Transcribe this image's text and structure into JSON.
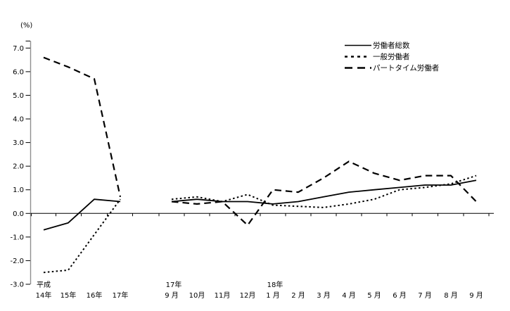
{
  "chart_data": {
    "type": "line",
    "title": "",
    "unit_label": "(%)",
    "ylabel": "",
    "xlabel": "",
    "ylim": [
      -3.0,
      7.0
    ],
    "ytick_interval": 1.0,
    "ytick_labels": [
      "7.0",
      "6.0",
      "5.0",
      "4.0",
      "3.0",
      "2.0",
      "1.0",
      "0.0",
      "-1.0",
      "-2.0",
      "-3.0"
    ],
    "grid": false,
    "zero_baseline": true,
    "legend_position": "top-right",
    "line_color": "#000000",
    "background_color": "#ffffff",
    "x_annual": {
      "era_label": "平成",
      "labels": [
        "14年",
        "15年",
        "16年",
        "17年"
      ]
    },
    "x_monthly": {
      "labels": [
        "9 月",
        "10月",
        "11月",
        "12月",
        "1 月",
        "2 月",
        "3 月",
        "4 月",
        "5 月",
        "6 月",
        "7 月",
        "8 月",
        "9 月"
      ],
      "year_markers": [
        {
          "index": 0,
          "label": "17年"
        },
        {
          "index": 4,
          "label": "18年"
        }
      ]
    },
    "series": [
      {
        "name": "労働者総数",
        "line_style": "solid",
        "color": "#000000",
        "annual_values": [
          -0.7,
          -0.4,
          0.6,
          0.5
        ],
        "monthly_values": [
          0.5,
          0.6,
          0.5,
          0.5,
          0.4,
          0.5,
          0.7,
          0.9,
          1.0,
          1.1,
          1.2,
          1.2,
          1.4
        ]
      },
      {
        "name": "一般労働者",
        "line_style": "dotted",
        "color": "#000000",
        "annual_values": [
          -2.5,
          -2.4,
          -0.9,
          0.6
        ],
        "monthly_values": [
          0.6,
          0.7,
          0.5,
          0.8,
          0.35,
          0.3,
          0.25,
          0.4,
          0.6,
          1.0,
          1.1,
          1.25,
          1.6
        ]
      },
      {
        "name": "パートタイム労働者",
        "line_style": "dashed",
        "color": "#000000",
        "annual_values": [
          6.6,
          6.2,
          5.7,
          0.7
        ],
        "monthly_values": [
          0.5,
          0.4,
          0.5,
          -0.5,
          1.0,
          0.9,
          1.5,
          2.2,
          1.7,
          1.4,
          1.6,
          1.6,
          0.5
        ]
      }
    ]
  }
}
